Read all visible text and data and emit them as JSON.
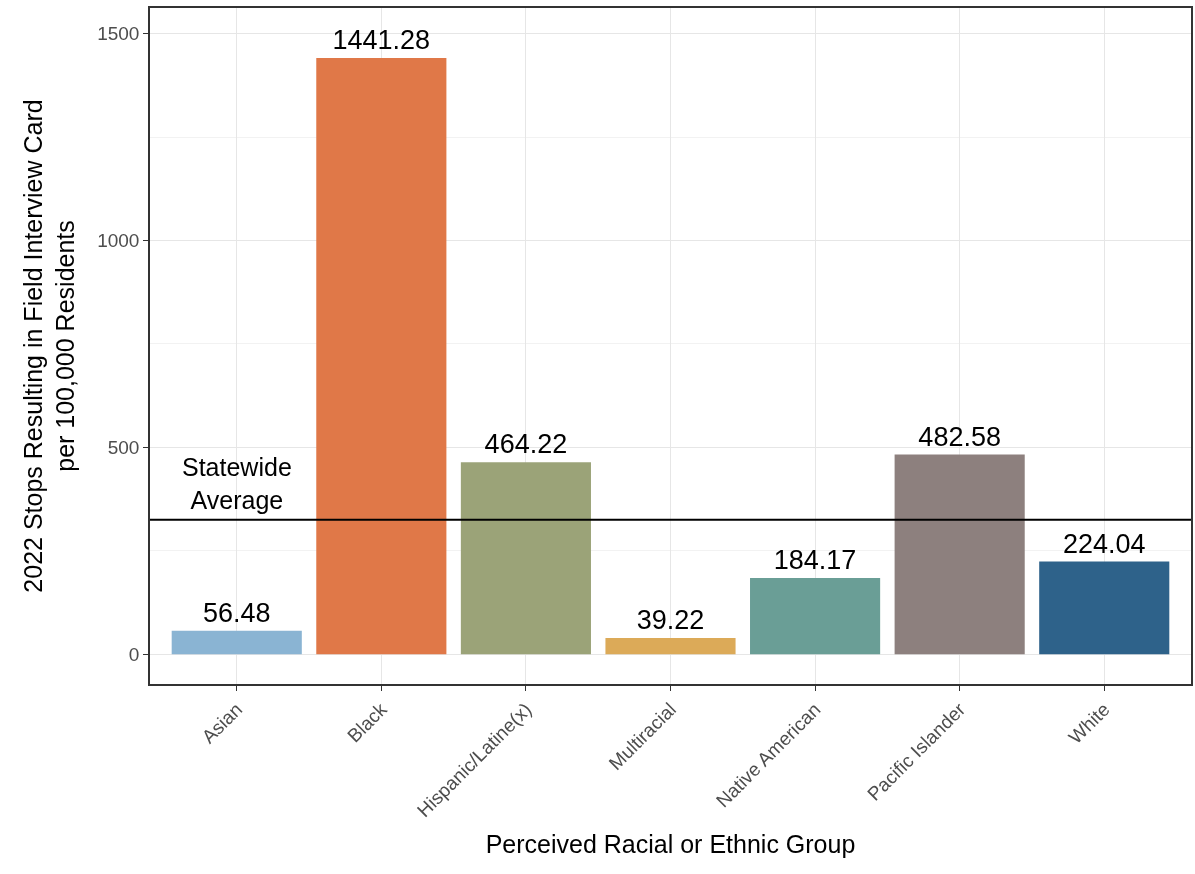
{
  "chart_data": {
    "type": "bar",
    "xlabel": "Perceived Racial or Ethnic Group",
    "ylabel": "2022 Stops Resulting in Field Interview Card\nper 100,000 Residents",
    "categories": [
      "Asian",
      "Black",
      "Hispanic/Latine(x)",
      "Multiracial",
      "Native American",
      "Pacific Islander",
      "White"
    ],
    "values": [
      56.48,
      1441.28,
      464.22,
      39.22,
      184.17,
      482.58,
      224.04
    ],
    "colors": [
      "#8ab4d3",
      "#e07848",
      "#9ba378",
      "#dcaa58",
      "#6a9e96",
      "#8d807e",
      "#2e628a"
    ],
    "data_labels": true,
    "ylim": [
      -72,
      1562
    ],
    "yticks": [
      0,
      500,
      1000,
      1500
    ],
    "grid": true,
    "ref_lines": [
      {
        "axis": "y",
        "value": 325,
        "label": "Statewide\nAverage",
        "color": "#000000"
      }
    ]
  }
}
